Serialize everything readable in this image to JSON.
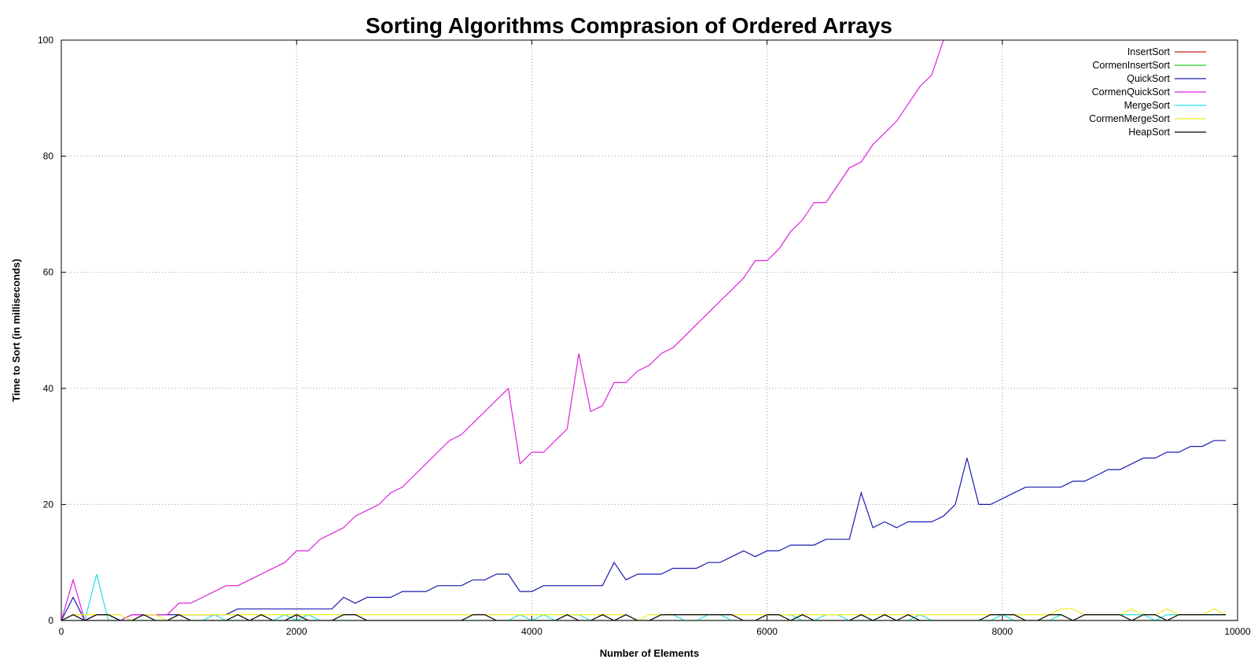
{
  "chart_data": {
    "type": "line",
    "title": "Sorting Algorithms Comprasion of Ordered Arrays",
    "xlabel": "Number of Elements",
    "ylabel": "Time to Sort (in milliseconds)",
    "xlim": [
      0,
      10000
    ],
    "ylim": [
      0,
      100
    ],
    "xticks": [
      0,
      2000,
      4000,
      6000,
      8000,
      10000
    ],
    "yticks": [
      0,
      20,
      40,
      60,
      80,
      100
    ],
    "grid": true,
    "legend_position": "top-right",
    "series": [
      {
        "name": "InsertSort",
        "color": "#cc2222",
        "x": [
          0,
          10000
        ],
        "y": [
          0,
          0
        ]
      },
      {
        "name": "CormenInsertSort",
        "color": "#22cc22",
        "x": [
          0,
          10000
        ],
        "y": [
          0,
          0
        ]
      },
      {
        "name": "QuickSort",
        "color": "#1a1ab0",
        "x": [
          0,
          100,
          200,
          300,
          400,
          500,
          600,
          700,
          800,
          900,
          1000,
          1100,
          1200,
          1300,
          1400,
          1500,
          1600,
          1700,
          1800,
          1900,
          2000,
          2100,
          2200,
          2300,
          2400,
          2500,
          2600,
          2700,
          2800,
          2900,
          3000,
          3100,
          3200,
          3300,
          3400,
          3500,
          3600,
          3700,
          3800,
          3900,
          4000,
          4100,
          4200,
          4300,
          4400,
          4500,
          4600,
          4700,
          4800,
          4900,
          5000,
          5100,
          5200,
          5300,
          5400,
          5500,
          5600,
          5700,
          5800,
          5900,
          6000,
          6100,
          6200,
          6300,
          6400,
          6500,
          6600,
          6700,
          6800,
          6900,
          7000,
          7100,
          7200,
          7300,
          7400,
          7500,
          7600,
          7700,
          7800,
          7900,
          8000,
          8100,
          8200,
          8300,
          8400,
          8500,
          8600,
          8700,
          8800,
          8900,
          9000,
          9100,
          9200,
          9300,
          9400,
          9500,
          9600,
          9700,
          9800,
          9900
        ],
        "y": [
          0,
          4,
          0,
          1,
          1,
          0,
          1,
          1,
          1,
          1,
          1,
          1,
          1,
          1,
          1,
          2,
          2,
          2,
          2,
          2,
          2,
          2,
          2,
          2,
          4,
          3,
          4,
          4,
          4,
          5,
          5,
          5,
          6,
          6,
          6,
          7,
          7,
          8,
          8,
          5,
          5,
          6,
          6,
          6,
          6,
          6,
          6,
          10,
          7,
          8,
          8,
          8,
          9,
          9,
          9,
          10,
          10,
          11,
          12,
          11,
          12,
          12,
          13,
          13,
          13,
          14,
          14,
          14,
          22,
          16,
          17,
          16,
          17,
          17,
          17,
          18,
          20,
          28,
          20,
          20,
          21,
          22,
          23,
          23,
          23,
          23,
          24,
          24,
          25,
          26,
          26,
          27,
          28,
          28,
          29,
          29,
          30,
          30,
          31,
          31
        ]
      },
      {
        "name": "CormenQuickSort",
        "color": "#dd22dd",
        "x": [
          0,
          100,
          200,
          300,
          400,
          500,
          600,
          700,
          800,
          900,
          1000,
          1100,
          1200,
          1300,
          1400,
          1500,
          1600,
          1700,
          1800,
          1900,
          2000,
          2100,
          2200,
          2300,
          2400,
          2500,
          2600,
          2700,
          2800,
          2900,
          3000,
          3100,
          3200,
          3300,
          3400,
          3500,
          3600,
          3700,
          3800,
          3900,
          4000,
          4100,
          4200,
          4300,
          4400,
          4500,
          4600,
          4700,
          4800,
          4900,
          5000,
          5100,
          5200,
          5300,
          5400,
          5500,
          5600,
          5700,
          5800,
          5900,
          6000,
          6100,
          6200,
          6300,
          6400,
          6500,
          6600,
          6700,
          6800,
          6900,
          7000,
          7100,
          7200,
          7300,
          7400,
          7500,
          7600
        ],
        "y": [
          0,
          7,
          0,
          0,
          0,
          0,
          1,
          1,
          1,
          1,
          3,
          3,
          4,
          5,
          6,
          6,
          7,
          8,
          9,
          10,
          12,
          12,
          14,
          15,
          16,
          18,
          19,
          20,
          22,
          23,
          25,
          27,
          29,
          31,
          32,
          34,
          36,
          38,
          40,
          27,
          29,
          29,
          31,
          33,
          46,
          36,
          37,
          41,
          41,
          43,
          44,
          46,
          47,
          49,
          51,
          53,
          55,
          57,
          59,
          62,
          62,
          64,
          67,
          69,
          72,
          72,
          75,
          78,
          79,
          82,
          84,
          86,
          89,
          92,
          94,
          100,
          104
        ]
      },
      {
        "name": "MergeSort",
        "color": "#22e0e0",
        "x": [
          0,
          100,
          200,
          300,
          400,
          500,
          600,
          700,
          800,
          900,
          1000,
          1100,
          1200,
          1300,
          1400,
          1500,
          1600,
          1700,
          1800,
          1900,
          2000,
          2100,
          2200,
          2300,
          2400,
          2500,
          2600,
          2700,
          2800,
          2900,
          3000,
          3100,
          3200,
          3300,
          3400,
          3500,
          3600,
          3700,
          3800,
          3900,
          4000,
          4100,
          4200,
          4300,
          4400,
          4500,
          4600,
          4700,
          4800,
          4900,
          5000,
          5100,
          5200,
          5300,
          5400,
          5500,
          5600,
          5700,
          5800,
          5900,
          6000,
          6100,
          6200,
          6300,
          6400,
          6500,
          6600,
          6700,
          6800,
          6900,
          7000,
          7100,
          7200,
          7300,
          7400,
          7500,
          7600,
          7700,
          7800,
          7900,
          8000,
          8100,
          8200,
          8300,
          8400,
          8500,
          8600,
          8700,
          8800,
          8900,
          9000,
          9100,
          9200,
          9300,
          9400,
          9500,
          9600,
          9700,
          9800,
          9900
        ],
        "y": [
          0,
          0,
          0,
          8,
          0,
          0,
          0,
          0,
          0,
          0,
          0,
          0,
          0,
          1,
          0,
          0,
          0,
          0,
          0,
          1,
          0,
          1,
          0,
          0,
          0,
          0,
          0,
          0,
          0,
          0,
          0,
          0,
          0,
          0,
          0,
          0,
          0,
          0,
          0,
          1,
          0,
          1,
          0,
          1,
          1,
          0,
          0,
          0,
          0,
          0,
          0,
          1,
          1,
          0,
          0,
          1,
          1,
          0,
          0,
          0,
          1,
          1,
          1,
          0,
          0,
          1,
          1,
          0,
          1,
          0,
          1,
          0,
          0,
          1,
          0,
          0,
          0,
          0,
          0,
          0,
          1,
          0,
          0,
          0,
          0,
          1,
          0,
          1,
          1,
          1,
          1,
          1,
          1,
          0,
          1,
          1,
          1,
          1,
          1,
          1
        ]
      },
      {
        "name": "CormenMergeSort",
        "color": "#eeee22",
        "x": [
          0,
          100,
          200,
          300,
          400,
          500,
          600,
          700,
          800,
          900,
          1000,
          1100,
          1200,
          1300,
          1400,
          1500,
          1600,
          1700,
          1800,
          1900,
          2000,
          2100,
          2200,
          2300,
          2400,
          2500,
          2600,
          2700,
          2800,
          2900,
          3000,
          3100,
          3200,
          3300,
          3400,
          3500,
          3600,
          3700,
          3800,
          3900,
          4000,
          4100,
          4200,
          4300,
          4400,
          4500,
          4600,
          4700,
          4800,
          4900,
          5000,
          5100,
          5200,
          5300,
          5400,
          5500,
          5600,
          5700,
          5800,
          5900,
          6000,
          6100,
          6200,
          6300,
          6400,
          6500,
          6600,
          6700,
          6800,
          6900,
          7000,
          7100,
          7200,
          7300,
          7400,
          7500,
          7600,
          7700,
          7800,
          7900,
          8000,
          8100,
          8200,
          8300,
          8400,
          8500,
          8600,
          8700,
          8800,
          8900,
          9000,
          9100,
          9200,
          9300,
          9400,
          9500,
          9600,
          9700,
          9800,
          9900
        ],
        "y": [
          0,
          1,
          1,
          1,
          1,
          1,
          0,
          1,
          1,
          0,
          1,
          1,
          1,
          1,
          1,
          1,
          1,
          1,
          1,
          1,
          1,
          1,
          1,
          1,
          1,
          1,
          1,
          1,
          1,
          1,
          1,
          1,
          1,
          1,
          1,
          1,
          1,
          1,
          1,
          1,
          1,
          1,
          1,
          1,
          1,
          1,
          1,
          1,
          1,
          0,
          1,
          1,
          1,
          1,
          1,
          1,
          1,
          1,
          1,
          1,
          1,
          1,
          1,
          1,
          1,
          1,
          1,
          1,
          1,
          1,
          1,
          1,
          1,
          1,
          1,
          1,
          1,
          1,
          1,
          1,
          1,
          1,
          1,
          1,
          1,
          2,
          2,
          1,
          1,
          1,
          1,
          2,
          1,
          1,
          2,
          1,
          1,
          1,
          2,
          1
        ]
      },
      {
        "name": "HeapSort",
        "color": "#000000",
        "x": [
          0,
          100,
          200,
          300,
          400,
          500,
          600,
          700,
          800,
          900,
          1000,
          1100,
          1200,
          1300,
          1400,
          1500,
          1600,
          1700,
          1800,
          1900,
          2000,
          2100,
          2200,
          2300,
          2400,
          2500,
          2600,
          2700,
          2800,
          2900,
          3000,
          3100,
          3200,
          3300,
          3400,
          3500,
          3600,
          3700,
          3800,
          3900,
          4000,
          4100,
          4200,
          4300,
          4400,
          4500,
          4600,
          4700,
          4800,
          4900,
          5000,
          5100,
          5200,
          5300,
          5400,
          5500,
          5600,
          5700,
          5800,
          5900,
          6000,
          6100,
          6200,
          6300,
          6400,
          6500,
          6600,
          6700,
          6800,
          6900,
          7000,
          7100,
          7200,
          7300,
          7400,
          7500,
          7600,
          7700,
          7800,
          7900,
          8000,
          8100,
          8200,
          8300,
          8400,
          8500,
          8600,
          8700,
          8800,
          8900,
          9000,
          9100,
          9200,
          9300,
          9400,
          9500,
          9600,
          9700,
          9800,
          9900
        ],
        "y": [
          0,
          1,
          0,
          1,
          1,
          0,
          0,
          1,
          0,
          0,
          1,
          0,
          0,
          0,
          0,
          1,
          0,
          1,
          0,
          0,
          1,
          0,
          0,
          0,
          1,
          1,
          0,
          0,
          0,
          0,
          0,
          0,
          0,
          0,
          0,
          1,
          1,
          0,
          0,
          0,
          0,
          0,
          0,
          1,
          0,
          0,
          1,
          0,
          1,
          0,
          0,
          1,
          1,
          1,
          1,
          1,
          1,
          1,
          0,
          0,
          1,
          1,
          0,
          1,
          0,
          0,
          0,
          0,
          1,
          0,
          1,
          0,
          1,
          0,
          0,
          0,
          0,
          0,
          0,
          1,
          1,
          1,
          0,
          0,
          1,
          1,
          0,
          1,
          1,
          1,
          1,
          0,
          1,
          1,
          0,
          1,
          1,
          1,
          1,
          1
        ]
      }
    ]
  }
}
